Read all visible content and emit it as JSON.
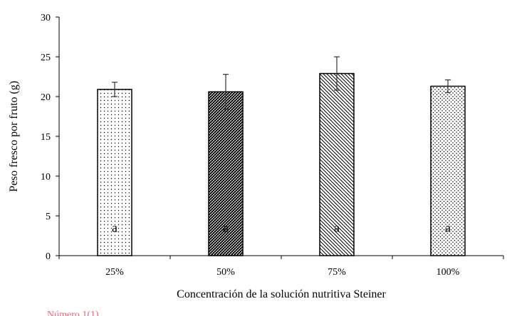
{
  "chart_data": {
    "type": "bar",
    "categories": [
      "25%",
      "50%",
      "75%",
      "100%"
    ],
    "values": [
      20.9,
      20.6,
      22.9,
      21.3
    ],
    "errors": [
      0.9,
      2.2,
      2.1,
      0.8
    ],
    "significance_letters": [
      "a",
      "a",
      "a",
      "a"
    ],
    "bar_patterns": [
      "fine-dots",
      "dense-diagonal-crosshatch",
      "diagonal-lines",
      "dotted-grid"
    ],
    "xlabel": "Concentración de la solución nutritiva Steiner",
    "ylabel": "Peso fresco por fruto (g)",
    "ylim": [
      0,
      30
    ],
    "yticks": [
      0,
      5,
      10,
      15,
      20,
      25,
      30
    ],
    "grid": false,
    "legend": "none",
    "colors": {
      "bar_outline": "#000000",
      "pattern": "#000000",
      "background": "#ffffff"
    }
  },
  "footer_fragment": "Número 1(1)"
}
